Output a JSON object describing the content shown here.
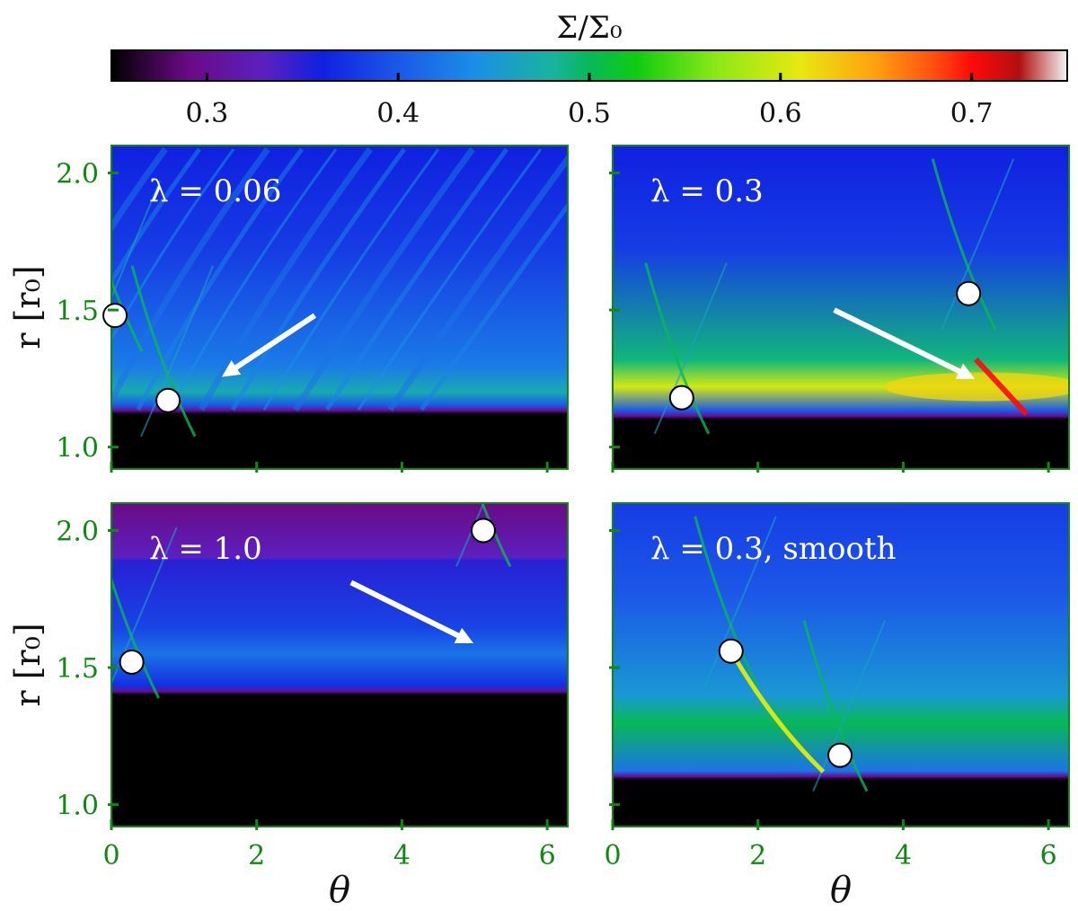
{
  "chart_data": {
    "type": "heatmap",
    "colorbar": {
      "label": "Σ/Σ₀",
      "range": [
        0.25,
        0.75
      ],
      "ticks": [
        0.3,
        0.4,
        0.5,
        0.6,
        0.7
      ],
      "tick_labels": [
        "0.3",
        "0.4",
        "0.5",
        "0.6",
        "0.7"
      ]
    },
    "x_axis": {
      "label": "θ",
      "range": [
        0,
        6.283
      ],
      "ticks": [
        0,
        2,
        4,
        6
      ],
      "tick_labels": [
        "0",
        "2",
        "4",
        "6"
      ]
    },
    "y_axis": {
      "label": "r [r₀]",
      "range": [
        0.92,
        2.1
      ],
      "ticks": [
        1.0,
        1.5,
        2.0
      ],
      "tick_labels": [
        "1.0",
        "1.5",
        "2.0"
      ]
    },
    "panels": [
      {
        "label": "λ = 0.06",
        "inner_edge_r": 1.12,
        "background_sigma": 0.38,
        "peak_band": {
          "r": 1.2,
          "sigma": 0.47
        },
        "markers": [
          {
            "theta": 0.05,
            "r": 1.48
          },
          {
            "theta": 0.78,
            "r": 1.17
          }
        ],
        "arrow": {
          "from": {
            "theta": 2.8,
            "r": 1.48
          },
          "to": {
            "theta": 1.6,
            "r": 1.27
          }
        }
      },
      {
        "label": "λ = 0.3",
        "inner_edge_r": 1.1,
        "background_sigma": 0.38,
        "peak_band": {
          "r": 1.22,
          "sigma": 0.6
        },
        "markers": [
          {
            "theta": 0.95,
            "r": 1.18
          },
          {
            "theta": 4.9,
            "r": 1.56
          }
        ],
        "arrow": {
          "from": {
            "theta": 3.05,
            "r": 1.5
          },
          "to": {
            "theta": 4.9,
            "r": 1.26
          }
        }
      },
      {
        "label": "λ = 1.0",
        "inner_edge_r": 1.4,
        "background_sigma": 0.35,
        "peak_band": {
          "r": 1.55,
          "sigma": 0.42
        },
        "markers": [
          {
            "theta": 0.28,
            "r": 1.52
          },
          {
            "theta": 5.12,
            "r": 2.0
          }
        ],
        "arrow": {
          "from": {
            "theta": 3.3,
            "r": 1.81
          },
          "to": {
            "theta": 4.9,
            "r": 1.6
          }
        }
      },
      {
        "label": "λ = 0.3,  smooth",
        "inner_edge_r": 1.09,
        "background_sigma": 0.4,
        "peak_band": {
          "r": 1.3,
          "sigma": 0.5
        },
        "markers": [
          {
            "theta": 1.63,
            "r": 1.56
          },
          {
            "theta": 3.13,
            "r": 1.18
          }
        ],
        "arrow": null
      }
    ]
  },
  "colors": {
    "axis_green": "#118811",
    "marker_fill": "#ffffff",
    "arrow": "#ffffff"
  }
}
